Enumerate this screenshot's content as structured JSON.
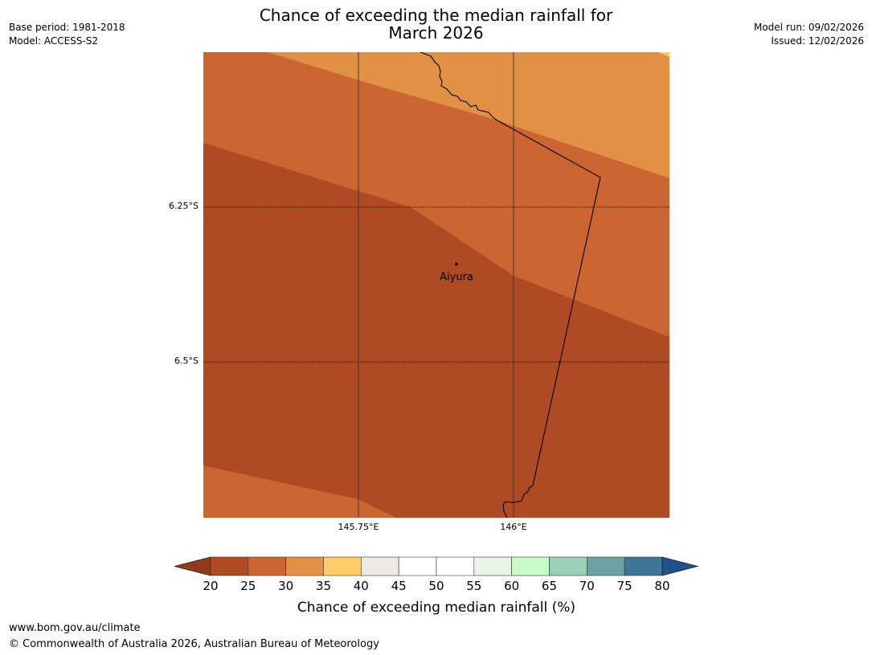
{
  "title_line1": "Chance of exceeding the median rainfall for",
  "title_line2": "March 2026",
  "meta": {
    "base_period": "Base period: 1981-2018",
    "model": "Model: ACCESS-S2",
    "model_run": "Model run: 09/02/2026",
    "issued": "Issued: 12/02/2026"
  },
  "map": {
    "place": "Aiyura",
    "lat_labels": [
      "6.25°S",
      "6.5°S"
    ],
    "lon_labels": [
      "145.75°E",
      "146°E"
    ]
  },
  "legend": {
    "ticks": [
      "20",
      "25",
      "30",
      "35",
      "40",
      "45",
      "50",
      "55",
      "60",
      "65",
      "70",
      "75",
      "80"
    ],
    "colors": [
      "#b04a25",
      "#cc6532",
      "#e09145",
      "#fecd69",
      "#ede9e5",
      "#ffffff",
      "#ffffff",
      "#e8f5e6",
      "#c7fcc8",
      "#9cd0b6",
      "#6da2a2",
      "#3f7596"
    ],
    "low_extend_color": "#92391d",
    "high_extend_color": "#1f5288",
    "label": "Chance of exceeding median rainfall (%)"
  },
  "footer": {
    "url": "www.bom.gov.au/climate",
    "copyright": "© Commonwealth of Australia 2026, Australian Bureau of Meteorology"
  }
}
